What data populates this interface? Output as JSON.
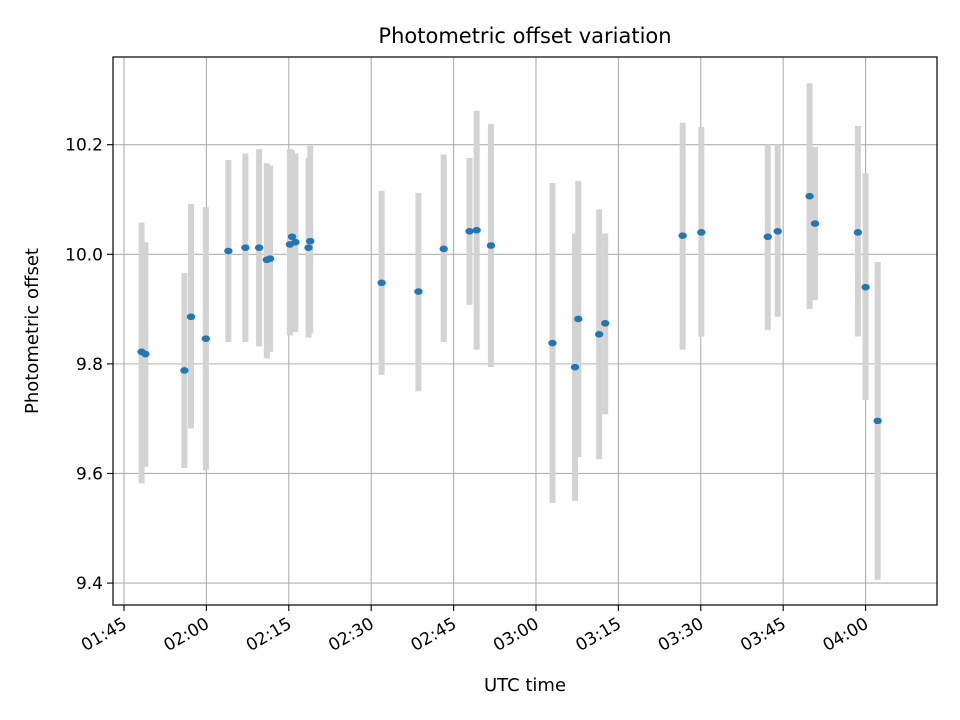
{
  "chart_data": {
    "type": "scatter",
    "title": "Photometric offset variation",
    "xlabel": "UTC time",
    "ylabel": "Photometric offset",
    "xlim": [
      103.0,
      253.0
    ],
    "ylim": [
      9.36,
      10.36
    ],
    "x_unit": "minutes after 00:00 UTC",
    "xticks": [
      {
        "value": 105,
        "label": "01:45"
      },
      {
        "value": 120,
        "label": "02:00"
      },
      {
        "value": 135,
        "label": "02:15"
      },
      {
        "value": 150,
        "label": "02:30"
      },
      {
        "value": 165,
        "label": "02:45"
      },
      {
        "value": 180,
        "label": "03:00"
      },
      {
        "value": 195,
        "label": "03:15"
      },
      {
        "value": 210,
        "label": "03:30"
      },
      {
        "value": 225,
        "label": "03:45"
      },
      {
        "value": 240,
        "label": "04:00"
      }
    ],
    "yticks": [
      {
        "value": 9.4,
        "label": "9.4"
      },
      {
        "value": 9.6,
        "label": "9.6"
      },
      {
        "value": 9.8,
        "label": "9.8"
      },
      {
        "value": 10.0,
        "label": "10.0"
      },
      {
        "value": 10.2,
        "label": "10.2"
      }
    ],
    "grid": true,
    "colors": {
      "point": "#1f77b4",
      "errorbar": "#d3d3d3",
      "grid": "#b0b0b0",
      "axes": "#000000"
    },
    "points": [
      {
        "x": 108.2,
        "y": 9.822,
        "err_low": 9.582,
        "err_high": 10.058
      },
      {
        "x": 108.9,
        "y": 9.818,
        "err_low": 9.612,
        "err_high": 10.022
      },
      {
        "x": 116.0,
        "y": 9.788,
        "err_low": 9.61,
        "err_high": 9.966
      },
      {
        "x": 117.2,
        "y": 9.886,
        "err_low": 9.682,
        "err_high": 10.092
      },
      {
        "x": 119.9,
        "y": 9.846,
        "err_low": 9.606,
        "err_high": 10.086
      },
      {
        "x": 124.0,
        "y": 10.006,
        "err_low": 9.84,
        "err_high": 10.172
      },
      {
        "x": 127.1,
        "y": 10.012,
        "err_low": 9.84,
        "err_high": 10.184
      },
      {
        "x": 129.6,
        "y": 10.012,
        "err_low": 9.832,
        "err_high": 10.192
      },
      {
        "x": 131.0,
        "y": 9.99,
        "err_low": 9.81,
        "err_high": 10.166
      },
      {
        "x": 131.6,
        "y": 9.992,
        "err_low": 9.822,
        "err_high": 10.162
      },
      {
        "x": 135.2,
        "y": 10.018,
        "err_low": 9.852,
        "err_high": 10.192
      },
      {
        "x": 135.6,
        "y": 10.032,
        "err_low": 9.868,
        "err_high": 10.19
      },
      {
        "x": 136.2,
        "y": 10.022,
        "err_low": 9.858,
        "err_high": 10.184
      },
      {
        "x": 138.6,
        "y": 10.012,
        "err_low": 9.848,
        "err_high": 10.176
      },
      {
        "x": 138.9,
        "y": 10.024,
        "err_low": 9.856,
        "err_high": 10.198
      },
      {
        "x": 151.9,
        "y": 9.948,
        "err_low": 9.78,
        "err_high": 10.116
      },
      {
        "x": 158.6,
        "y": 9.932,
        "err_low": 9.75,
        "err_high": 10.112
      },
      {
        "x": 163.2,
        "y": 10.01,
        "err_low": 9.84,
        "err_high": 10.182
      },
      {
        "x": 167.9,
        "y": 10.042,
        "err_low": 9.908,
        "err_high": 10.176
      },
      {
        "x": 169.2,
        "y": 10.044,
        "err_low": 9.826,
        "err_high": 10.262
      },
      {
        "x": 171.8,
        "y": 10.016,
        "err_low": 9.794,
        "err_high": 10.238
      },
      {
        "x": 183.0,
        "y": 9.838,
        "err_low": 9.546,
        "err_high": 10.13
      },
      {
        "x": 187.1,
        "y": 9.794,
        "err_low": 9.55,
        "err_high": 10.038
      },
      {
        "x": 187.7,
        "y": 9.882,
        "err_low": 9.63,
        "err_high": 10.134
      },
      {
        "x": 191.5,
        "y": 9.854,
        "err_low": 9.626,
        "err_high": 10.082
      },
      {
        "x": 192.6,
        "y": 9.874,
        "err_low": 9.708,
        "err_high": 10.038
      },
      {
        "x": 206.7,
        "y": 10.034,
        "err_low": 9.826,
        "err_high": 10.24
      },
      {
        "x": 210.1,
        "y": 10.04,
        "err_low": 9.85,
        "err_high": 10.232
      },
      {
        "x": 222.2,
        "y": 10.032,
        "err_low": 9.862,
        "err_high": 10.2
      },
      {
        "x": 224.0,
        "y": 10.042,
        "err_low": 9.886,
        "err_high": 10.2
      },
      {
        "x": 229.8,
        "y": 10.106,
        "err_low": 9.9,
        "err_high": 10.312
      },
      {
        "x": 230.8,
        "y": 10.056,
        "err_low": 9.916,
        "err_high": 10.196
      },
      {
        "x": 238.6,
        "y": 10.04,
        "err_low": 9.85,
        "err_high": 10.234
      },
      {
        "x": 240.0,
        "y": 9.94,
        "err_low": 9.734,
        "err_high": 10.148
      },
      {
        "x": 242.2,
        "y": 9.696,
        "err_low": 9.406,
        "err_high": 9.986
      }
    ]
  }
}
